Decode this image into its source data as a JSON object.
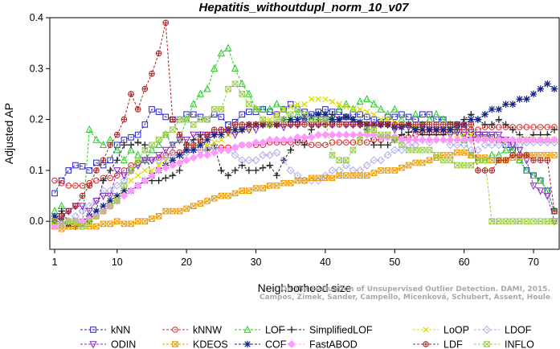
{
  "chart_data": {
    "type": "line",
    "title": "Hepatitis_withoutdupl_norm_10_v07",
    "xlabel": "Neighborhood size",
    "ylabel": "Adjusted AP",
    "xlim": [
      0.3,
      73.7
    ],
    "ylim": [
      -0.055,
      0.4
    ],
    "xticks": [
      1,
      10,
      20,
      30,
      40,
      50,
      60,
      70
    ],
    "yticks": [
      0.0,
      0.1,
      0.2,
      0.3,
      0.4
    ],
    "ytick_labels": [
      "0.0",
      "0.1",
      "0.2",
      "0.3",
      "0.4"
    ],
    "grid": false,
    "legend_position": "bottom",
    "watermark": [
      "Campos, Zimek, Sander, Campello, Micenková, Schubert, Assent, Houle",
      "On the Evaluation of Unsupervised Outlier Detection. DAMI, 2015."
    ],
    "series": [
      {
        "name": "kNN",
        "color": "#2222cc",
        "marker": "square",
        "values": [
          0.055,
          0.08,
          0.1,
          0.11,
          0.108,
          0.1,
          0.115,
          0.11,
          0.12,
          0.15,
          0.16,
          0.165,
          0.17,
          0.19,
          0.22,
          0.215,
          0.205,
          0.2,
          0.2,
          0.21,
          0.21,
          0.205,
          0.2,
          0.21,
          0.205,
          0.19,
          0.195,
          0.21,
          0.215,
          0.215,
          0.22,
          0.215,
          0.21,
          0.22,
          0.23,
          0.22,
          0.215,
          0.21,
          0.215,
          0.22,
          0.215,
          0.215,
          0.205,
          0.21,
          0.21,
          0.205,
          0.2,
          0.195,
          0.205,
          0.205,
          0.21,
          0.205,
          0.2,
          0.21,
          0.21,
          0.2,
          0.2,
          0.19,
          0.19,
          0.185,
          0.175,
          0.17,
          0.17,
          0.165,
          0.16,
          0.15,
          0.14,
          0.12,
          0.1,
          0.09,
          0.08,
          0.06,
          0.02
        ]
      },
      {
        "name": "kNNW",
        "color": "#dd2222",
        "marker": "circle",
        "values": [
          0.08,
          0.075,
          0.07,
          0.07,
          0.07,
          0.075,
          0.08,
          0.085,
          0.085,
          0.09,
          0.1,
          0.11,
          0.115,
          0.12,
          0.12,
          0.125,
          0.13,
          0.135,
          0.135,
          0.14,
          0.14,
          0.14,
          0.14,
          0.145,
          0.145,
          0.145,
          0.145,
          0.15,
          0.15,
          0.15,
          0.15,
          0.155,
          0.155,
          0.155,
          0.155,
          0.155,
          0.155,
          0.15,
          0.15,
          0.15,
          0.155,
          0.155,
          0.155,
          0.155,
          0.155,
          0.155,
          0.16,
          0.16,
          0.165,
          0.165,
          0.165,
          0.165,
          0.17,
          0.175,
          0.175,
          0.175,
          0.175,
          0.18,
          0.18,
          0.18,
          0.18,
          0.18,
          0.185,
          0.185,
          0.185,
          0.185,
          0.185,
          0.185,
          0.185,
          0.185,
          0.185,
          0.185,
          0.185
        ]
      },
      {
        "name": "LOF",
        "color": "#22cc22",
        "marker": "triangle-up",
        "values": [
          0.02,
          0.03,
          -0.01,
          0.0,
          -0.005,
          0.18,
          0.16,
          0.15,
          0.16,
          0.14,
          0.12,
          0.14,
          0.13,
          0.12,
          0.14,
          0.15,
          0.17,
          0.15,
          0.16,
          0.2,
          0.23,
          0.25,
          0.26,
          0.3,
          0.33,
          0.34,
          0.3,
          0.27,
          0.25,
          0.22,
          0.22,
          0.22,
          0.23,
          0.22,
          0.2,
          0.21,
          0.2,
          0.2,
          0.21,
          0.21,
          0.2,
          0.22,
          0.23,
          0.22,
          0.235,
          0.24,
          0.23,
          0.22,
          0.21,
          0.22,
          0.2,
          0.19,
          0.21,
          0.19,
          0.2,
          0.21,
          0.2,
          0.19,
          0.18,
          0.16,
          0.13,
          0.12,
          0.12,
          0.13,
          0.13,
          0.14,
          0.14,
          0.12,
          0.1,
          0.09,
          0.08,
          0.06,
          0.02
        ]
      },
      {
        "name": "SimplifiedLOF",
        "color": "#222222",
        "marker": "plus",
        "values": [
          0.0,
          0.02,
          0.0,
          -0.01,
          -0.005,
          0.0,
          0.02,
          0.08,
          0.1,
          0.12,
          0.15,
          0.15,
          0.155,
          0.15,
          0.08,
          0.08,
          0.085,
          0.09,
          0.1,
          0.15,
          0.16,
          0.17,
          0.14,
          0.15,
          0.1,
          0.09,
          0.1,
          0.11,
          0.1,
          0.1,
          0.105,
          0.11,
          0.09,
          0.12,
          0.14,
          0.16,
          0.15,
          0.18,
          0.2,
          0.19,
          0.21,
          0.2,
          0.205,
          0.2,
          0.19,
          0.18,
          0.15,
          0.15,
          0.15,
          0.16,
          0.17,
          0.175,
          0.18,
          0.17,
          0.17,
          0.17,
          0.17,
          0.18,
          0.18,
          0.2,
          0.21,
          0.2,
          0.19,
          0.19,
          0.2,
          0.19,
          0.18,
          0.17,
          0.16,
          0.17,
          0.17,
          0.17,
          0.18
        ]
      },
      {
        "name": "LoOP",
        "color": "#dddd00",
        "marker": "x",
        "values": [
          0.0,
          0.0,
          0.0,
          -0.01,
          -0.005,
          0.0,
          0.01,
          0.02,
          0.03,
          0.04,
          0.06,
          0.08,
          0.09,
          0.1,
          0.1,
          0.11,
          0.12,
          0.12,
          0.13,
          0.14,
          0.145,
          0.15,
          0.15,
          0.155,
          0.16,
          0.17,
          0.175,
          0.18,
          0.18,
          0.19,
          0.2,
          0.2,
          0.21,
          0.22,
          0.225,
          0.23,
          0.23,
          0.24,
          0.24,
          0.24,
          0.235,
          0.23,
          0.225,
          0.22,
          0.22,
          0.215,
          0.21,
          0.2,
          0.2,
          0.195,
          0.19,
          0.19,
          0.185,
          0.18,
          0.18,
          0.18,
          0.18,
          0.175,
          0.17,
          0.17,
          0.17,
          0.165,
          0.165,
          0.165,
          0.16,
          0.16,
          0.16,
          0.16,
          0.16,
          0.16,
          0.16,
          0.16,
          0.16
        ]
      },
      {
        "name": "LDOF",
        "color": "#aaaaee",
        "marker": "diamond",
        "values": [
          0.0,
          -0.005,
          0.0,
          0.01,
          0.02,
          0.03,
          0.04,
          0.06,
          0.06,
          0.07,
          0.08,
          0.1,
          0.11,
          0.12,
          0.12,
          0.12,
          0.125,
          0.13,
          0.13,
          0.135,
          0.14,
          0.14,
          0.14,
          0.145,
          0.14,
          0.14,
          0.13,
          0.12,
          0.12,
          0.12,
          0.13,
          0.13,
          0.135,
          0.12,
          0.1,
          0.09,
          0.08,
          0.08,
          0.08,
          0.09,
          0.1,
          0.1,
          0.11,
          0.1,
          0.1,
          0.11,
          0.12,
          0.12,
          0.13,
          0.14,
          0.14,
          0.15,
          0.15,
          0.16,
          0.155,
          0.16,
          0.16,
          0.15,
          0.15,
          0.15,
          0.14,
          0.14,
          0.15,
          0.15,
          0.15,
          0.15,
          0.15,
          0.15,
          0.155,
          0.155,
          0.155,
          0.155,
          0.155
        ]
      },
      {
        "name": "ODIN",
        "color": "#8822cc",
        "marker": "triangle-down",
        "values": [
          0.0,
          0.01,
          0.02,
          0.03,
          0.03,
          0.02,
          0.04,
          0.05,
          0.05,
          0.1,
          0.09,
          0.1,
          0.11,
          0.12,
          0.12,
          0.13,
          0.14,
          0.15,
          0.16,
          0.16,
          0.17,
          0.17,
          0.17,
          0.17,
          0.175,
          0.175,
          0.17,
          0.18,
          0.18,
          0.18,
          0.19,
          0.19,
          0.19,
          0.185,
          0.19,
          0.19,
          0.2,
          0.19,
          0.19,
          0.2,
          0.19,
          0.2,
          0.19,
          0.19,
          0.19,
          0.19,
          0.185,
          0.19,
          0.19,
          0.18,
          0.185,
          0.185,
          0.18,
          0.19,
          0.18,
          0.18,
          0.18,
          0.17,
          0.175,
          0.17,
          0.16,
          0.17,
          0.17,
          0.17,
          0.17,
          0.16,
          0.15,
          0.14,
          0.12,
          0.07,
          0.06,
          0.05,
          0.0
        ]
      },
      {
        "name": "KDEOS",
        "color": "#ee9900",
        "marker": "square-x",
        "values": [
          -0.01,
          -0.015,
          -0.01,
          -0.01,
          -0.01,
          -0.01,
          -0.01,
          -0.005,
          -0.005,
          0.0,
          -0.005,
          -0.005,
          0.0,
          0.0,
          0.005,
          0.01,
          0.02,
          0.02,
          0.02,
          0.025,
          0.03,
          0.035,
          0.04,
          0.045,
          0.05,
          0.05,
          0.055,
          0.06,
          0.06,
          0.065,
          0.065,
          0.07,
          0.07,
          0.075,
          0.075,
          0.08,
          0.08,
          0.085,
          0.085,
          0.085,
          0.085,
          0.09,
          0.09,
          0.09,
          0.09,
          0.09,
          0.095,
          0.1,
          0.1,
          0.1,
          0.105,
          0.11,
          0.115,
          0.115,
          0.12,
          0.125,
          0.13,
          0.13,
          0.135,
          0.135,
          0.13,
          0.125,
          0.125,
          0.12,
          0.12,
          0.12,
          0.125,
          0.125,
          0.13,
          0.13,
          0.13,
          0.13,
          0.13
        ]
      },
      {
        "name": "COF",
        "color": "#112288",
        "marker": "asterisk",
        "values": [
          0.01,
          0.0,
          -0.005,
          0.0,
          0.0,
          0.01,
          0.02,
          0.03,
          0.04,
          0.05,
          0.06,
          0.06,
          0.07,
          0.08,
          0.09,
          0.1,
          0.11,
          0.12,
          0.13,
          0.14,
          0.14,
          0.15,
          0.16,
          0.17,
          0.17,
          0.18,
          0.18,
          0.18,
          0.19,
          0.19,
          0.19,
          0.19,
          0.19,
          0.2,
          0.2,
          0.2,
          0.205,
          0.205,
          0.21,
          0.21,
          0.2,
          0.2,
          0.205,
          0.2,
          0.195,
          0.19,
          0.19,
          0.19,
          0.19,
          0.185,
          0.185,
          0.19,
          0.18,
          0.18,
          0.18,
          0.18,
          0.18,
          0.18,
          0.19,
          0.19,
          0.2,
          0.2,
          0.21,
          0.22,
          0.22,
          0.23,
          0.23,
          0.24,
          0.24,
          0.25,
          0.26,
          0.27,
          0.26
        ]
      },
      {
        "name": "FastABOD",
        "color": "#ff99ff",
        "marker": "diamond-filled",
        "values": [
          -0.01,
          -0.005,
          0.0,
          0.0,
          0.0,
          0.005,
          0.01,
          0.02,
          0.03,
          0.04,
          0.05,
          0.06,
          0.07,
          0.08,
          0.09,
          0.1,
          0.105,
          0.11,
          0.115,
          0.12,
          0.125,
          0.13,
          0.13,
          0.135,
          0.14,
          0.14,
          0.145,
          0.15,
          0.15,
          0.155,
          0.155,
          0.16,
          0.16,
          0.16,
          0.16,
          0.165,
          0.165,
          0.165,
          0.17,
          0.17,
          0.17,
          0.17,
          0.17,
          0.17,
          0.17,
          0.17,
          0.17,
          0.165,
          0.165,
          0.165,
          0.16,
          0.16,
          0.16,
          0.16,
          0.16,
          0.16,
          0.16,
          0.16,
          0.16,
          0.16,
          0.16,
          0.16,
          0.16,
          0.16,
          0.16,
          0.16,
          0.16,
          0.16,
          0.16,
          0.16,
          0.16,
          0.16,
          0.16
        ]
      },
      {
        "name": "LDF",
        "color": "#aa2222",
        "marker": "circle-plus",
        "values": [
          0.0,
          0.01,
          0.02,
          0.03,
          0.05,
          0.07,
          0.1,
          0.12,
          0.15,
          0.17,
          0.2,
          0.25,
          0.22,
          0.26,
          0.29,
          0.33,
          0.39,
          0.2,
          0.17,
          0.15,
          0.15,
          0.16,
          0.17,
          0.18,
          0.18,
          0.18,
          0.19,
          0.19,
          0.19,
          0.19,
          0.19,
          0.19,
          0.19,
          0.19,
          0.19,
          0.19,
          0.19,
          0.19,
          0.19,
          0.19,
          0.19,
          0.19,
          0.19,
          0.19,
          0.19,
          0.19,
          0.19,
          0.19,
          0.19,
          0.19,
          0.19,
          0.19,
          0.19,
          0.19,
          0.19,
          0.19,
          0.19,
          0.19,
          0.19,
          0.19,
          0.19,
          0.1,
          0.1,
          0.1,
          0.12,
          0.12,
          0.13,
          0.13,
          0.13,
          0.12,
          0.12,
          0.12,
          0.02
        ]
      },
      {
        "name": "INFLO",
        "color": "#99cc44",
        "marker": "square-x",
        "values": [
          0.0,
          -0.005,
          0.0,
          0.0,
          -0.01,
          0.0,
          0.01,
          0.02,
          0.03,
          0.04,
          0.07,
          0.1,
          0.12,
          0.14,
          0.15,
          0.16,
          0.17,
          0.18,
          0.2,
          0.2,
          0.19,
          0.2,
          0.2,
          0.22,
          0.22,
          0.26,
          0.27,
          0.25,
          0.23,
          0.22,
          0.2,
          0.19,
          0.2,
          0.2,
          0.21,
          0.22,
          0.21,
          0.2,
          0.2,
          0.2,
          0.13,
          0.12,
          0.12,
          0.14,
          0.16,
          0.18,
          0.18,
          0.17,
          0.17,
          0.16,
          0.15,
          0.14,
          0.14,
          0.14,
          0.14,
          0.13,
          0.12,
          0.12,
          0.11,
          0.11,
          0.11,
          0.12,
          0.12,
          0.0,
          0.0,
          0.0,
          0.0,
          0.0,
          0.0,
          0.0,
          0.0,
          0.0,
          0.0
        ]
      }
    ]
  }
}
